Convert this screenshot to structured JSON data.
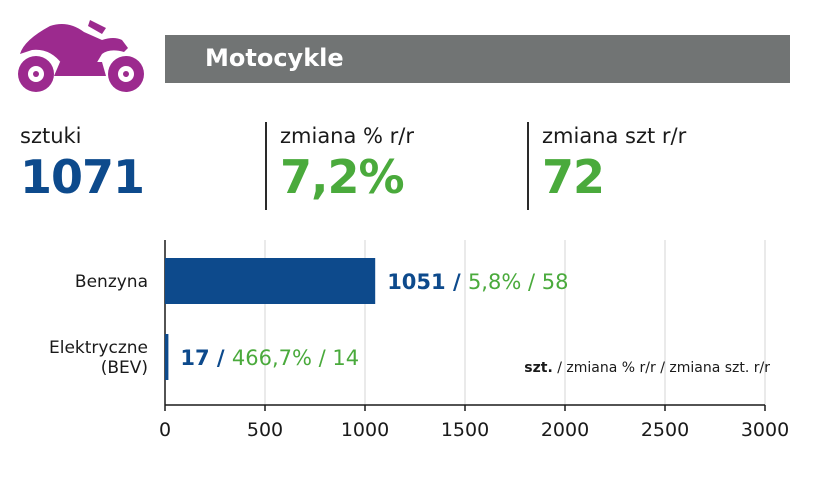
{
  "header": {
    "title": "Motocykle",
    "icon": "motorcycle-icon",
    "icon_color": "#9c2a8e",
    "banner_color": "#717474"
  },
  "stats": [
    {
      "label": "sztuki",
      "value": "1071",
      "color": "#0d4a8c"
    },
    {
      "label": "zmiana % r/r",
      "value": "7,2%",
      "color": "#4aaa3c"
    },
    {
      "label": "zmiana szt r/r",
      "value": "72",
      "color": "#4aaa3c"
    }
  ],
  "chart_data": {
    "type": "bar",
    "orientation": "horizontal",
    "categories": [
      [
        "Benzyna"
      ],
      [
        "Elektryczne",
        "(BEV)"
      ]
    ],
    "values": [
      1051,
      17
    ],
    "pct_change": [
      "5,8%",
      "466,7%"
    ],
    "unit_change": [
      "58",
      "14"
    ],
    "xlim": [
      0,
      3000
    ],
    "xticks": [
      "0",
      "500",
      "1000",
      "1500",
      "2000",
      "2500",
      "3000"
    ],
    "grid": true,
    "legend_note": {
      "bold": "szt.",
      "rest": " / zmiana % r/r / zmiana szt. r/r"
    },
    "colors": {
      "bar": "#0d4a8c",
      "value": "#0d4a8c",
      "change": "#4aaa3c"
    }
  }
}
